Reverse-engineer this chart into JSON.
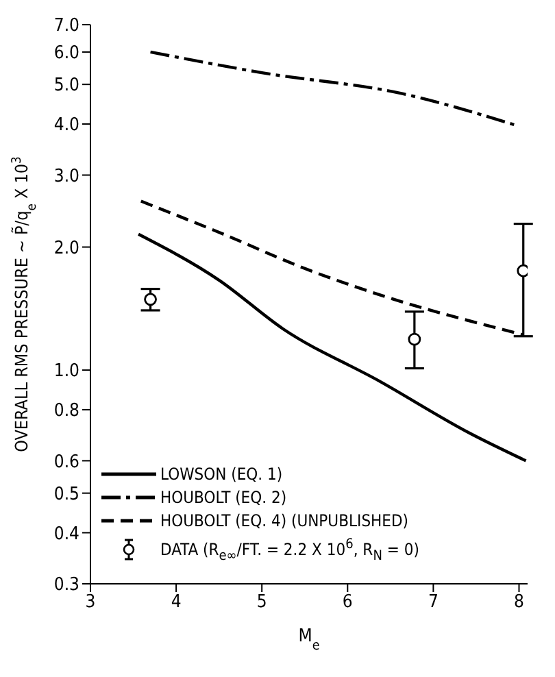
{
  "chart_data": {
    "type": "line",
    "xlabel": "M$_{e}$",
    "ylabel": "OVERALL RMS PRESSURE ~ P̃/q$_{e}$ X 10$^{3}$",
    "series": [
      {
        "name": "LOWSON (EQ. 1)",
        "color": "#000000",
        "line_style": "solid",
        "x": [
          3.56,
          4.5,
          5.25,
          6.37,
          7.43,
          8.08
        ],
        "values": [
          2.15,
          1.66,
          1.26,
          0.94,
          0.7,
          0.6
        ]
      },
      {
        "name": "HOUBOLT (EQ. 2)",
        "color": "#000000",
        "line_style": "dashdot",
        "x": [
          3.7,
          5.0,
          6.63,
          8.0
        ],
        "values": [
          6.0,
          5.34,
          4.75,
          3.95
        ]
      },
      {
        "name": "HOUBOLT (EQ. 4) (UNPUBLISHED)",
        "color": "#000000",
        "line_style": "dashed",
        "x": [
          3.59,
          4.46,
          5.57,
          6.63,
          7.79,
          8.05
        ],
        "values": [
          2.59,
          2.19,
          1.75,
          1.47,
          1.26,
          1.22
        ]
      },
      {
        "name": "DATA (R$_{e∞}$/FT. = 2.2 X 10$^{6}$, R$_{N}$ = 0)",
        "type": "scatter",
        "color": "#000000",
        "marker": "circle",
        "x": [
          3.7,
          6.78,
          8.05
        ],
        "values": [
          1.49,
          1.19,
          1.75
        ],
        "errors": [
          [
            1.4,
            1.58
          ],
          [
            1.01,
            1.39
          ],
          [
            1.21,
            2.28
          ]
        ]
      }
    ],
    "xlim": [
      3,
      8.1
    ],
    "xticks": [
      3,
      4,
      5,
      6,
      7,
      8
    ],
    "ylim": [
      0.3,
      7
    ],
    "yticks": [
      {
        "value": 0.3,
        "label": "0.3"
      },
      {
        "value": 0.4,
        "label": "0.4"
      },
      {
        "value": 0.5,
        "label": "0.5"
      },
      {
        "value": 0.6,
        "label": "0.6"
      },
      {
        "value": 0.8,
        "label": "0.8"
      },
      {
        "value": 1,
        "label": "1.0"
      },
      {
        "value": 2,
        "label": "2.0"
      },
      {
        "value": 3,
        "label": "3.0"
      },
      {
        "value": 4,
        "label": "4.0"
      },
      {
        "value": 5,
        "label": "5.0"
      },
      {
        "value": 6,
        "label": "6.0"
      },
      {
        "value": 7,
        "label": "7.0"
      }
    ],
    "log": "y",
    "grid": false,
    "legend": "bottom left",
    "marker": "none"
  }
}
